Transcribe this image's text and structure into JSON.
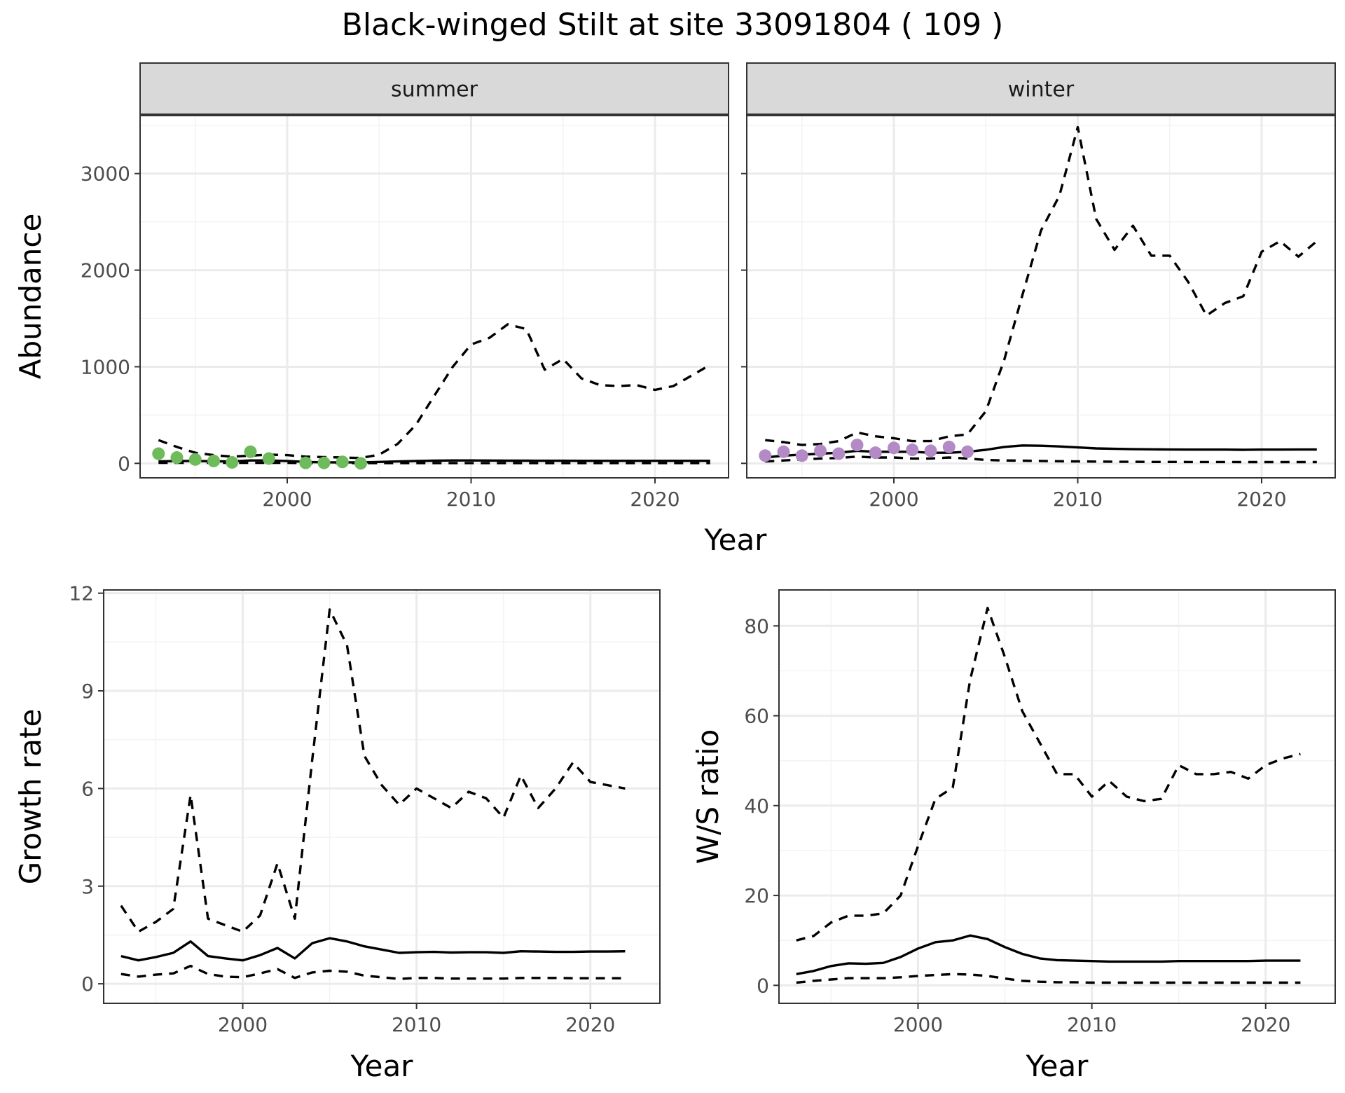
{
  "title": "Black-winged Stilt at site 33091804 ( 109 )",
  "colors": {
    "summer_points": "#6dbb5a",
    "winter_points": "#b48ac6",
    "lines": "#000000",
    "strip_fill": "#d9d9d9",
    "grid_major": "#ebebeb",
    "grid_minor": "#f3f3f3"
  },
  "chart_data": [
    {
      "id": "summer",
      "type": "line",
      "facet_label": "summer",
      "xlabel": "Year",
      "ylabel": "Abundance",
      "xlim": [
        1992,
        2024
      ],
      "ylim": [
        -150,
        3600
      ],
      "x_ticks": [
        2000,
        2010,
        2020
      ],
      "y_ticks": [
        0,
        1000,
        2000,
        3000
      ],
      "series": [
        {
          "role": "upper",
          "style": "dashed",
          "x": [
            1993,
            1994,
            1995,
            1996,
            1997,
            1998,
            1999,
            2000,
            2001,
            2002,
            2003,
            2004,
            2005,
            2006,
            2007,
            2008,
            2009,
            2010,
            2011,
            2012,
            2013,
            2014,
            2015,
            2016,
            2017,
            2018,
            2019,
            2020,
            2021,
            2022,
            2023
          ],
          "y": [
            240,
            170,
            110,
            85,
            70,
            80,
            90,
            85,
            70,
            65,
            60,
            55,
            90,
            200,
            400,
            700,
            1000,
            1230,
            1300,
            1440,
            1390,
            970,
            1080,
            880,
            810,
            800,
            810,
            760,
            800,
            910,
            1020
          ]
        },
        {
          "role": "estimate",
          "style": "solid",
          "x": [
            1993,
            1994,
            1995,
            1996,
            1997,
            1998,
            1999,
            2000,
            2001,
            2002,
            2003,
            2004,
            2005,
            2006,
            2007,
            2008,
            2009,
            2010,
            2011,
            2012,
            2013,
            2014,
            2015,
            2016,
            2017,
            2018,
            2019,
            2020,
            2021,
            2022,
            2023
          ],
          "y": [
            20,
            25,
            25,
            22,
            20,
            30,
            30,
            25,
            15,
            10,
            10,
            10,
            15,
            20,
            25,
            28,
            30,
            30,
            29,
            28,
            28,
            27,
            27,
            26,
            26,
            26,
            26,
            26,
            26,
            26,
            26
          ]
        },
        {
          "role": "lower",
          "style": "dashed",
          "x": [
            1993,
            1994,
            1995,
            1996,
            1997,
            1998,
            1999,
            2000,
            2001,
            2002,
            2003,
            2004,
            2005,
            2006,
            2007,
            2008,
            2009,
            2010,
            2011,
            2012,
            2013,
            2014,
            2015,
            2016,
            2017,
            2018,
            2019,
            2020,
            2021,
            2022,
            2023
          ],
          "y": [
            5,
            5,
            5,
            5,
            5,
            5,
            5,
            5,
            3,
            3,
            3,
            3,
            3,
            3,
            3,
            3,
            3,
            3,
            3,
            3,
            3,
            3,
            3,
            3,
            3,
            3,
            3,
            3,
            3,
            3,
            3
          ]
        }
      ],
      "points": {
        "x": [
          1993,
          1994,
          1995,
          1996,
          1997,
          1998,
          1999,
          2001,
          2002,
          2003,
          2004
        ],
        "y": [
          100,
          60,
          40,
          25,
          10,
          120,
          50,
          5,
          5,
          15,
          0
        ]
      }
    },
    {
      "id": "winter",
      "type": "line",
      "facet_label": "winter",
      "xlim": [
        1992,
        2024
      ],
      "ylim": [
        -150,
        3600
      ],
      "x_ticks": [
        2000,
        2010,
        2020
      ],
      "series": [
        {
          "role": "upper",
          "style": "dashed",
          "x": [
            1993,
            1994,
            1995,
            1996,
            1997,
            1998,
            1999,
            2000,
            2001,
            2002,
            2003,
            2004,
            2005,
            2006,
            2007,
            2008,
            2009,
            2010,
            2011,
            2012,
            2013,
            2014,
            2015,
            2016,
            2017,
            2018,
            2019,
            2020,
            2021,
            2022,
            2023
          ],
          "y": [
            240,
            220,
            190,
            200,
            230,
            320,
            280,
            260,
            230,
            230,
            280,
            300,
            540,
            1070,
            1750,
            2410,
            2770,
            3480,
            2530,
            2210,
            2460,
            2150,
            2150,
            1880,
            1530,
            1660,
            1730,
            2190,
            2300,
            2140,
            2300
          ]
        },
        {
          "role": "estimate",
          "style": "solid",
          "x": [
            1993,
            1994,
            1995,
            1996,
            1997,
            1998,
            1999,
            2000,
            2001,
            2002,
            2003,
            2004,
            2005,
            2006,
            2007,
            2008,
            2009,
            2010,
            2011,
            2012,
            2013,
            2014,
            2015,
            2016,
            2017,
            2018,
            2019,
            2020,
            2021,
            2022,
            2023
          ],
          "y": [
            60,
            80,
            90,
            100,
            110,
            130,
            120,
            120,
            120,
            110,
            110,
            120,
            140,
            170,
            185,
            182,
            175,
            165,
            155,
            150,
            147,
            145,
            143,
            142,
            142,
            142,
            140,
            142,
            142,
            143,
            143
          ]
        },
        {
          "role": "lower",
          "style": "dashed",
          "x": [
            1993,
            1994,
            1995,
            1996,
            1997,
            1998,
            1999,
            2000,
            2001,
            2002,
            2003,
            2004,
            2005,
            2006,
            2007,
            2008,
            2009,
            2010,
            2011,
            2012,
            2013,
            2014,
            2015,
            2016,
            2017,
            2018,
            2019,
            2020,
            2021,
            2022,
            2023
          ],
          "y": [
            20,
            30,
            40,
            50,
            55,
            70,
            60,
            60,
            50,
            50,
            60,
            50,
            35,
            30,
            28,
            25,
            22,
            20,
            18,
            17,
            16,
            15,
            15,
            14,
            14,
            14,
            13,
            13,
            13,
            13,
            13
          ]
        }
      ],
      "points": {
        "x": [
          1993,
          1994,
          1995,
          1996,
          1997,
          1998,
          1999,
          2000,
          2001,
          2002,
          2003,
          2004
        ],
        "y": [
          80,
          120,
          80,
          130,
          100,
          190,
          110,
          160,
          140,
          130,
          170,
          120
        ]
      }
    },
    {
      "id": "growth",
      "type": "line",
      "xlabel": "Year",
      "ylabel": "Growth rate",
      "xlim": [
        1992,
        2024
      ],
      "ylim": [
        -0.6,
        12.1
      ],
      "x_ticks": [
        2000,
        2010,
        2020
      ],
      "y_ticks": [
        0,
        3,
        6,
        9,
        12
      ],
      "series": [
        {
          "role": "upper",
          "style": "dashed",
          "x": [
            1993,
            1994,
            1995,
            1996,
            1997,
            1998,
            1999,
            2000,
            2001,
            2002,
            2003,
            2004,
            2005,
            2006,
            2007,
            2008,
            2009,
            2010,
            2011,
            2012,
            2013,
            2014,
            2015,
            2016,
            2017,
            2018,
            2019,
            2020,
            2021,
            2022
          ],
          "y": [
            2.4,
            1.6,
            1.9,
            2.3,
            5.8,
            2.0,
            1.8,
            1.6,
            2.1,
            3.7,
            2.0,
            6.9,
            11.5,
            10.4,
            7.0,
            6.1,
            5.5,
            6.0,
            5.7,
            5.4,
            5.9,
            5.7,
            5.1,
            6.4,
            5.4,
            6.0,
            6.8,
            6.2,
            6.1,
            6.0
          ]
        },
        {
          "role": "estimate",
          "style": "solid",
          "x": [
            1993,
            1994,
            1995,
            1996,
            1997,
            1998,
            1999,
            2000,
            2001,
            2002,
            2003,
            2004,
            2005,
            2006,
            2007,
            2008,
            2009,
            2010,
            2011,
            2012,
            2013,
            2014,
            2015,
            2016,
            2017,
            2018,
            2019,
            2020,
            2021,
            2022
          ],
          "y": [
            0.85,
            0.72,
            0.82,
            0.95,
            1.3,
            0.85,
            0.78,
            0.72,
            0.88,
            1.1,
            0.78,
            1.25,
            1.4,
            1.3,
            1.15,
            1.05,
            0.95,
            0.97,
            0.98,
            0.96,
            0.97,
            0.97,
            0.95,
            1.0,
            0.99,
            0.98,
            0.98,
            0.99,
            0.99,
            1.0
          ]
        },
        {
          "role": "lower",
          "style": "dashed",
          "x": [
            1993,
            1994,
            1995,
            1996,
            1997,
            1998,
            1999,
            2000,
            2001,
            2002,
            2003,
            2004,
            2005,
            2006,
            2007,
            2008,
            2009,
            2010,
            2011,
            2012,
            2013,
            2014,
            2015,
            2016,
            2017,
            2018,
            2019,
            2020,
            2021,
            2022
          ],
          "y": [
            0.3,
            0.22,
            0.28,
            0.32,
            0.55,
            0.3,
            0.22,
            0.2,
            0.32,
            0.45,
            0.18,
            0.35,
            0.4,
            0.37,
            0.25,
            0.2,
            0.15,
            0.18,
            0.18,
            0.16,
            0.16,
            0.16,
            0.16,
            0.18,
            0.18,
            0.18,
            0.17,
            0.17,
            0.17,
            0.17
          ]
        }
      ]
    },
    {
      "id": "ratio",
      "type": "line",
      "xlabel": "Year",
      "ylabel": "W/S ratio",
      "xlim": [
        1992,
        2024
      ],
      "ylim": [
        -4,
        88
      ],
      "x_ticks": [
        2000,
        2010,
        2020
      ],
      "y_ticks": [
        0,
        20,
        40,
        60,
        80
      ],
      "series": [
        {
          "role": "upper",
          "style": "dashed",
          "x": [
            1993,
            1994,
            1995,
            1996,
            1997,
            1998,
            1999,
            2000,
            2001,
            2002,
            2003,
            2004,
            2005,
            2006,
            2007,
            2008,
            2009,
            2010,
            2011,
            2012,
            2013,
            2014,
            2015,
            2016,
            2017,
            2018,
            2019,
            2020,
            2021,
            2022
          ],
          "y": [
            10,
            11,
            14,
            15.5,
            15.5,
            16,
            20,
            31,
            41.5,
            44,
            68,
            84,
            73,
            61,
            54,
            47,
            47,
            42,
            45.5,
            42,
            41,
            41.5,
            49,
            47,
            47,
            47.5,
            46,
            49,
            50.5,
            51.5
          ]
        },
        {
          "role": "estimate",
          "style": "solid",
          "x": [
            1993,
            1994,
            1995,
            1996,
            1997,
            1998,
            1999,
            2000,
            2001,
            2002,
            2003,
            2004,
            2005,
            2006,
            2007,
            2008,
            2009,
            2010,
            2011,
            2012,
            2013,
            2014,
            2015,
            2016,
            2017,
            2018,
            2019,
            2020,
            2021,
            2022
          ],
          "y": [
            2.5,
            3.2,
            4.3,
            4.9,
            4.8,
            5.0,
            6.3,
            8.2,
            9.6,
            10.0,
            11.1,
            10.3,
            8.5,
            7.0,
            6.0,
            5.6,
            5.5,
            5.4,
            5.3,
            5.3,
            5.3,
            5.3,
            5.4,
            5.4,
            5.4,
            5.4,
            5.4,
            5.5,
            5.5,
            5.5
          ]
        },
        {
          "role": "lower",
          "style": "dashed",
          "x": [
            1993,
            1994,
            1995,
            1996,
            1997,
            1998,
            1999,
            2000,
            2001,
            2002,
            2003,
            2004,
            2005,
            2006,
            2007,
            2008,
            2009,
            2010,
            2011,
            2012,
            2013,
            2014,
            2015,
            2016,
            2017,
            2018,
            2019,
            2020,
            2021,
            2022
          ],
          "y": [
            0.6,
            1.0,
            1.3,
            1.6,
            1.6,
            1.6,
            1.8,
            2.1,
            2.3,
            2.5,
            2.4,
            2.1,
            1.5,
            1.0,
            0.8,
            0.7,
            0.7,
            0.6,
            0.6,
            0.6,
            0.6,
            0.6,
            0.6,
            0.6,
            0.6,
            0.6,
            0.6,
            0.6,
            0.6,
            0.6
          ]
        }
      ]
    }
  ]
}
